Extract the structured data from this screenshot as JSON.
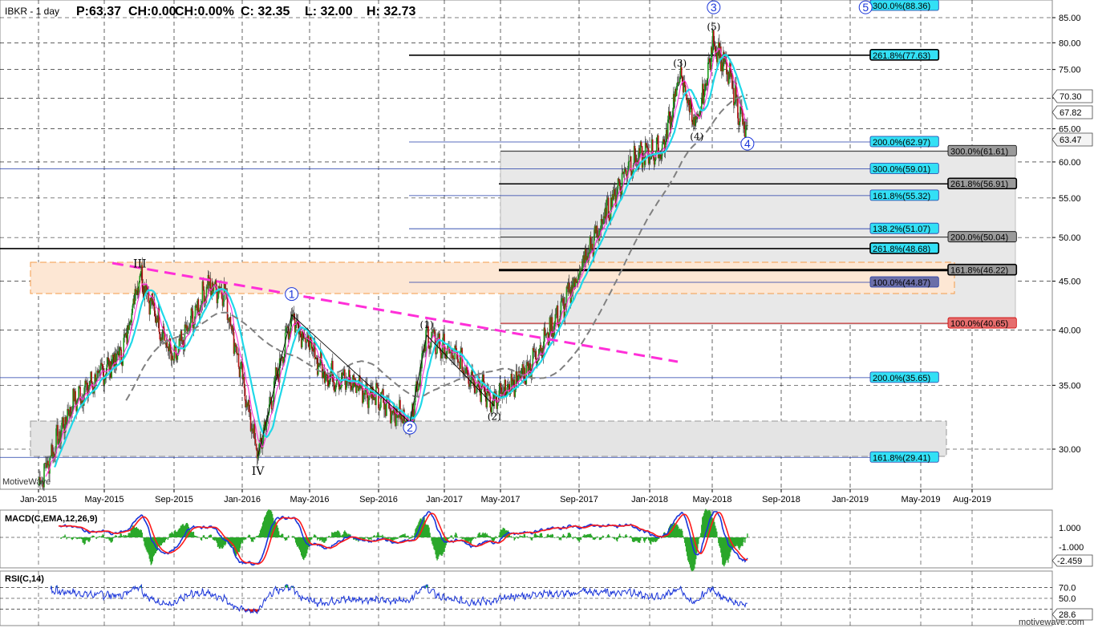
{
  "header": {
    "symbol": "IBKR - 1 day",
    "price": "P:63.37",
    "change": "CH:0.00",
    "change_pct": "CH:0.00%",
    "close": "C: 32.35",
    "low": "L: 32.00",
    "high": "H: 32.73"
  },
  "watermark_left": "MotiveWave",
  "watermark_right": "motivewave.com",
  "chart_data": [
    {
      "type": "candlestick",
      "title": "",
      "x_tick_labels": [
        "Jan-2015",
        "May-2015",
        "Sep-2015",
        "Jan-2016",
        "May-2016",
        "Sep-2016",
        "Jan-2017",
        "May-2017",
        "Sep-2017",
        "Jan-2018",
        "May-2018",
        "Sep-2018",
        "Jan-2019",
        "May-2019",
        "Aug-2019"
      ],
      "y_tick_labels": [
        "30.00",
        "35.00",
        "40.00",
        "45.00",
        "50.00",
        "55.00",
        "60.00",
        "65.00",
        "70.00",
        "75.00",
        "80.00",
        "85.00"
      ],
      "ylim": [
        26,
        88
      ],
      "price_labels": [
        "70.30",
        "67.82",
        "63.47"
      ],
      "price_series_keypoints": [
        {
          "x": "Jan-2015",
          "y": 27.5
        },
        {
          "x": "Mar-2015",
          "y": 33.5
        },
        {
          "x": "Jun-2015",
          "y": 38
        },
        {
          "x": "Jul-2015",
          "y": 46
        },
        {
          "x": "Sep-2015",
          "y": 37
        },
        {
          "x": "Nov-2015",
          "y": 44.5
        },
        {
          "x": "Dec-2015",
          "y": 44
        },
        {
          "x": "Feb-2016",
          "y": 29.5
        },
        {
          "x": "Apr-2016",
          "y": 41.5
        },
        {
          "x": "Jun-2016",
          "y": 36
        },
        {
          "x": "Aug-2016",
          "y": 35
        },
        {
          "x": "Nov-2016",
          "y": 32
        },
        {
          "x": "Dec-2016",
          "y": 39.5
        },
        {
          "x": "Feb-2017",
          "y": 37
        },
        {
          "x": "Apr-2017",
          "y": 33.5
        },
        {
          "x": "Jun-2017",
          "y": 36.5
        },
        {
          "x": "Aug-2017",
          "y": 42
        },
        {
          "x": "Oct-2017",
          "y": 50
        },
        {
          "x": "Dec-2017",
          "y": 60
        },
        {
          "x": "Feb-2018",
          "y": 62
        },
        {
          "x": "Mar-2018",
          "y": 74
        },
        {
          "x": "Apr-2018",
          "y": 65
        },
        {
          "x": "May-2018",
          "y": 80.5
        },
        {
          "x": "Jun-2018",
          "y": 73
        },
        {
          "x": "Jul-2018",
          "y": 63.4
        }
      ],
      "fib_levels": [
        {
          "label": "300.0%(88.36)",
          "value": 88.36,
          "style": "cyan"
        },
        {
          "label": "261.8%(77.63)",
          "value": 77.63,
          "style": "cyan-bold"
        },
        {
          "label": "200.0%(62.97)",
          "value": 62.97,
          "style": "cyan"
        },
        {
          "label": "300.0%(61.61)",
          "value": 61.61,
          "style": "gray"
        },
        {
          "label": "300.0%(59.01)",
          "value": 59.01,
          "style": "cyan"
        },
        {
          "label": "261.8%(56.91)",
          "value": 56.91,
          "style": "gray-bold"
        },
        {
          "label": "161.8%(55.32)",
          "value": 55.32,
          "style": "cyan"
        },
        {
          "label": "138.2%(51.07)",
          "value": 51.07,
          "style": "cyan"
        },
        {
          "label": "200.0%(50.04)",
          "value": 50.04,
          "style": "gray"
        },
        {
          "label": "261.8%(48.68)",
          "value": 48.68,
          "style": "cyan-bold"
        },
        {
          "label": "161.8%(46.22)",
          "value": 46.22,
          "style": "gray-bold"
        },
        {
          "label": "100.0%(44.87)",
          "value": 44.87,
          "style": "navy"
        },
        {
          "label": "100.0%(40.65)",
          "value": 40.65,
          "style": "red"
        },
        {
          "label": "200.0%(35.65)",
          "value": 35.65,
          "style": "cyan"
        },
        {
          "label": "161.8%(29.41)",
          "value": 29.41,
          "style": "cyan"
        }
      ],
      "wave_labels": [
        {
          "text": "III",
          "x": "Jul-2015",
          "y": 46.5
        },
        {
          "text": "IV",
          "x": "Feb-2016",
          "y": 28.2
        },
        {
          "text": "1",
          "x": "Apr-2016",
          "y": 43.2,
          "circled": true
        },
        {
          "text": "2",
          "x": "Nov-2016",
          "y": 31.3,
          "circled": true
        },
        {
          "text": "(1)",
          "x": "Dec-2016",
          "y": 40.2
        },
        {
          "text": "(2)",
          "x": "Apr-2017",
          "y": 32.2
        },
        {
          "text": "(3)",
          "x": "Mar-2018",
          "y": 75.5
        },
        {
          "text": "(4)",
          "x": "Apr-2018",
          "y": 63.3
        },
        {
          "text": "(5)",
          "x": "May-2018",
          "y": 82.5
        },
        {
          "text": "3",
          "x": "May-2018",
          "y": 86.3,
          "circled": true
        },
        {
          "text": "4",
          "x": "Jul-2018",
          "y": 62.1,
          "circled": true
        },
        {
          "text": "5",
          "x": "Feb-2019",
          "y": 86.3,
          "circled": true
        }
      ]
    },
    {
      "type": "line",
      "title": "MACD(C,EMA,12,26,9)",
      "y_tick_labels": [
        "1.000",
        "-1.000"
      ],
      "last_value_label": "-2.459"
    },
    {
      "type": "line",
      "title": "RSI(C,14)",
      "y_tick_labels": [
        "70.0",
        "50.0"
      ],
      "last_value_label": "28.6"
    }
  ],
  "colors": {
    "ma_fast": "#ff2fd8",
    "ma_mid": "#1fd8e8",
    "ma_slow": "#808080",
    "trendline": "#ff2fd8",
    "macd_line": "#1a35d9",
    "signal_line": "#ff1a1a",
    "hist": "#2aa72a",
    "rsi_line": "#1a35d9",
    "cyan_label": "#33e0f5",
    "gray_label": "#9a9a9a"
  }
}
